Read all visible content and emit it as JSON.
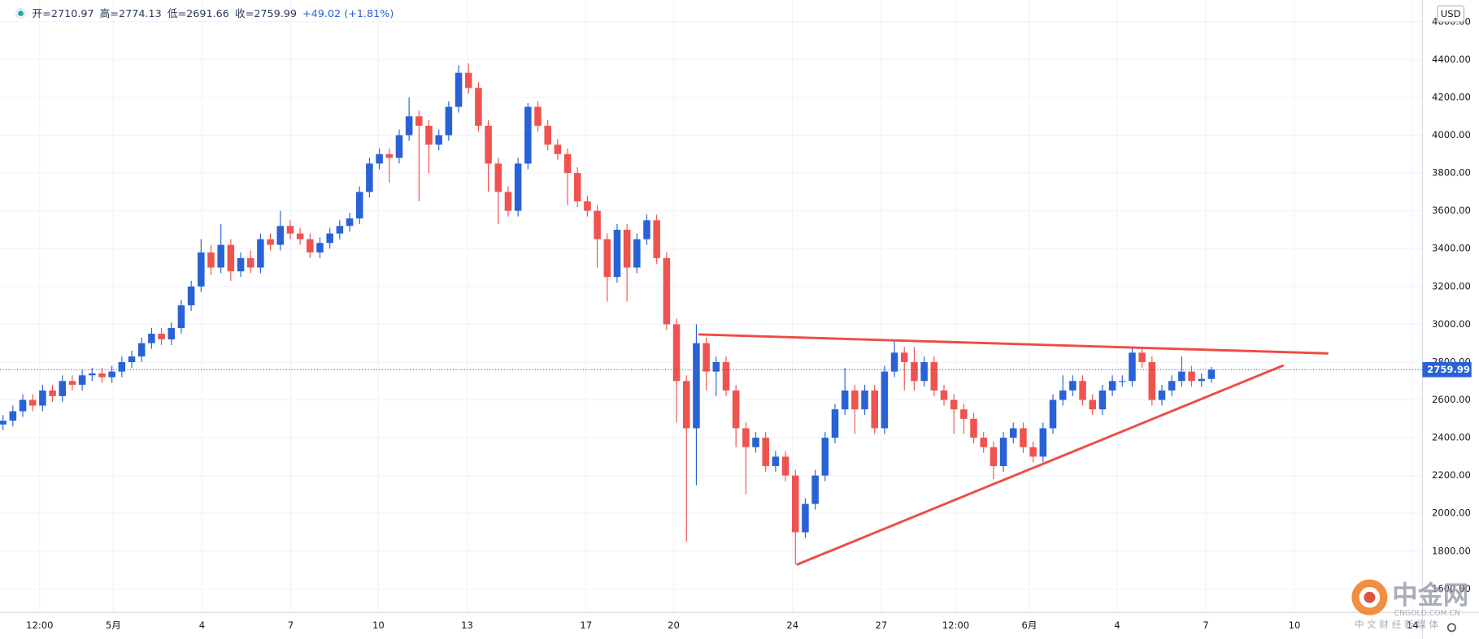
{
  "chart_data": {
    "type": "candlestick",
    "header": [
      "开=2710.97",
      "高=2774.13",
      "低=2691.66",
      "收=2759.99",
      "+49.02 (+1.81%)"
    ],
    "currency": "USD",
    "up_color": "#2962d6",
    "down_color": "#ef5350",
    "xlim": [
      -0.3,
      143.3
    ],
    "xticks": [
      {
        "value": 3.71,
        "label": "12:00"
      },
      {
        "value": 11.14,
        "label": "5月"
      },
      {
        "value": 20.1,
        "label": "4"
      },
      {
        "value": 29.05,
        "label": "7"
      },
      {
        "value": 37.9,
        "label": "10"
      },
      {
        "value": 46.86,
        "label": "13"
      },
      {
        "value": 58.86,
        "label": "17"
      },
      {
        "value": 67.71,
        "label": "20"
      },
      {
        "value": 79.71,
        "label": "24"
      },
      {
        "value": 88.67,
        "label": "27"
      },
      {
        "value": 96.19,
        "label": "12:00"
      },
      {
        "value": 103.62,
        "label": "6月"
      },
      {
        "value": 112.48,
        "label": "4"
      },
      {
        "value": 121.43,
        "label": "7"
      },
      {
        "value": 130.38,
        "label": "10"
      },
      {
        "value": 142.29,
        "label": "14"
      }
    ],
    "ylim": [
      1476,
      4714
    ],
    "yticks": [
      {
        "value": 1600,
        "label": "1600.00"
      },
      {
        "value": 1800,
        "label": "1800.00"
      },
      {
        "value": 2000,
        "label": "2000.00"
      },
      {
        "value": 2200,
        "label": "2200.00"
      },
      {
        "value": 2400,
        "label": "2400.00"
      },
      {
        "value": 2600,
        "label": "2600.00"
      },
      {
        "value": 2800,
        "label": "2800.00"
      },
      {
        "value": 3000,
        "label": "3000.00"
      },
      {
        "value": 3200,
        "label": "3200.00"
      },
      {
        "value": 3400,
        "label": "3400.00"
      },
      {
        "value": 3600,
        "label": "3600.00"
      },
      {
        "value": 3800,
        "label": "3800.00"
      },
      {
        "value": 4000,
        "label": "4000.00"
      },
      {
        "value": 4200,
        "label": "4200.00"
      },
      {
        "value": 4400,
        "label": "4400.00"
      },
      {
        "value": 4600,
        "label": "4600.00"
      }
    ],
    "grid": true,
    "last_price": 2759.99,
    "candles": [
      [
        2470,
        2520,
        2440,
        2490
      ],
      [
        2490,
        2570,
        2460,
        2540
      ],
      [
        2540,
        2630,
        2510,
        2600
      ],
      [
        2600,
        2630,
        2540,
        2570
      ],
      [
        2570,
        2680,
        2540,
        2650
      ],
      [
        2650,
        2680,
        2590,
        2620
      ],
      [
        2620,
        2730,
        2590,
        2700
      ],
      [
        2700,
        2730,
        2650,
        2680
      ],
      [
        2680,
        2760,
        2650,
        2730
      ],
      [
        2730,
        2770,
        2700,
        2740
      ],
      [
        2740,
        2770,
        2690,
        2720
      ],
      [
        2720,
        2780,
        2690,
        2750
      ],
      [
        2750,
        2830,
        2720,
        2800
      ],
      [
        2800,
        2860,
        2770,
        2830
      ],
      [
        2830,
        2930,
        2800,
        2900
      ],
      [
        2900,
        2980,
        2870,
        2950
      ],
      [
        2950,
        2980,
        2890,
        2920
      ],
      [
        2920,
        3010,
        2890,
        2980
      ],
      [
        2980,
        3130,
        2950,
        3100
      ],
      [
        3100,
        3230,
        3070,
        3200
      ],
      [
        3200,
        3450,
        3170,
        3380
      ],
      [
        3380,
        3420,
        3260,
        3300
      ],
      [
        3300,
        3530,
        3270,
        3420
      ],
      [
        3420,
        3450,
        3230,
        3280
      ],
      [
        3280,
        3380,
        3250,
        3350
      ],
      [
        3350,
        3390,
        3270,
        3300
      ],
      [
        3300,
        3480,
        3270,
        3450
      ],
      [
        3450,
        3480,
        3390,
        3420
      ],
      [
        3420,
        3600,
        3390,
        3520
      ],
      [
        3520,
        3550,
        3450,
        3480
      ],
      [
        3480,
        3510,
        3420,
        3450
      ],
      [
        3450,
        3480,
        3350,
        3380
      ],
      [
        3380,
        3460,
        3350,
        3430
      ],
      [
        3430,
        3510,
        3400,
        3480
      ],
      [
        3480,
        3550,
        3450,
        3520
      ],
      [
        3520,
        3590,
        3490,
        3560
      ],
      [
        3560,
        3730,
        3530,
        3700
      ],
      [
        3700,
        3880,
        3670,
        3850
      ],
      [
        3850,
        3930,
        3820,
        3900
      ],
      [
        3900,
        3930,
        3750,
        3880
      ],
      [
        3880,
        4030,
        3850,
        4000
      ],
      [
        4000,
        4200,
        3970,
        4100
      ],
      [
        4100,
        4130,
        3650,
        4050
      ],
      [
        4050,
        4080,
        3800,
        3950
      ],
      [
        3950,
        4030,
        3920,
        4000
      ],
      [
        4000,
        4180,
        3970,
        4150
      ],
      [
        4150,
        4370,
        4120,
        4330
      ],
      [
        4330,
        4380,
        4220,
        4250
      ],
      [
        4250,
        4280,
        4020,
        4050
      ],
      [
        4050,
        4080,
        3700,
        3850
      ],
      [
        3850,
        3880,
        3530,
        3700
      ],
      [
        3700,
        3730,
        3570,
        3600
      ],
      [
        3600,
        3880,
        3570,
        3850
      ],
      [
        3850,
        4170,
        3820,
        4150
      ],
      [
        4150,
        4180,
        4020,
        4050
      ],
      [
        4050,
        4080,
        3920,
        3950
      ],
      [
        3950,
        3980,
        3870,
        3900
      ],
      [
        3900,
        3930,
        3630,
        3800
      ],
      [
        3800,
        3830,
        3620,
        3650
      ],
      [
        3650,
        3680,
        3570,
        3600
      ],
      [
        3600,
        3630,
        3300,
        3450
      ],
      [
        3450,
        3480,
        3120,
        3250
      ],
      [
        3250,
        3530,
        3220,
        3500
      ],
      [
        3500,
        3530,
        3120,
        3300
      ],
      [
        3300,
        3480,
        3270,
        3450
      ],
      [
        3450,
        3580,
        3420,
        3550
      ],
      [
        3550,
        3580,
        3320,
        3350
      ],
      [
        3350,
        3380,
        2970,
        3000
      ],
      [
        3000,
        3030,
        2480,
        2700
      ],
      [
        2700,
        2730,
        1850,
        2450
      ],
      [
        2450,
        3000,
        2150,
        2900
      ],
      [
        2900,
        2930,
        2650,
        2750
      ],
      [
        2750,
        2830,
        2620,
        2800
      ],
      [
        2800,
        2830,
        2620,
        2650
      ],
      [
        2650,
        2680,
        2350,
        2450
      ],
      [
        2450,
        2480,
        2100,
        2350
      ],
      [
        2350,
        2430,
        2320,
        2400
      ],
      [
        2400,
        2430,
        2220,
        2250
      ],
      [
        2250,
        2330,
        2220,
        2300
      ],
      [
        2300,
        2330,
        2170,
        2200
      ],
      [
        2200,
        2230,
        1730,
        1900
      ],
      [
        1900,
        2080,
        1870,
        2050
      ],
      [
        2050,
        2230,
        2020,
        2200
      ],
      [
        2200,
        2430,
        2170,
        2400
      ],
      [
        2400,
        2580,
        2370,
        2550
      ],
      [
        2550,
        2770,
        2520,
        2650
      ],
      [
        2650,
        2680,
        2420,
        2550
      ],
      [
        2550,
        2680,
        2520,
        2650
      ],
      [
        2650,
        2680,
        2420,
        2450
      ],
      [
        2450,
        2780,
        2420,
        2750
      ],
      [
        2750,
        2910,
        2720,
        2850
      ],
      [
        2850,
        2880,
        2650,
        2800
      ],
      [
        2800,
        2880,
        2650,
        2700
      ],
      [
        2700,
        2830,
        2670,
        2800
      ],
      [
        2800,
        2830,
        2620,
        2650
      ],
      [
        2650,
        2680,
        2570,
        2600
      ],
      [
        2600,
        2630,
        2420,
        2550
      ],
      [
        2550,
        2580,
        2420,
        2500
      ],
      [
        2500,
        2530,
        2370,
        2400
      ],
      [
        2400,
        2430,
        2320,
        2350
      ],
      [
        2350,
        2380,
        2180,
        2250
      ],
      [
        2250,
        2430,
        2220,
        2400
      ],
      [
        2400,
        2480,
        2370,
        2450
      ],
      [
        2450,
        2480,
        2320,
        2350
      ],
      [
        2350,
        2380,
        2270,
        2300
      ],
      [
        2300,
        2480,
        2270,
        2450
      ],
      [
        2450,
        2630,
        2420,
        2600
      ],
      [
        2600,
        2730,
        2570,
        2650
      ],
      [
        2650,
        2730,
        2620,
        2700
      ],
      [
        2700,
        2730,
        2570,
        2600
      ],
      [
        2600,
        2630,
        2520,
        2550
      ],
      [
        2550,
        2680,
        2520,
        2650
      ],
      [
        2650,
        2730,
        2620,
        2700
      ],
      [
        2700,
        2730,
        2670,
        2700
      ],
      [
        2700,
        2880,
        2670,
        2850
      ],
      [
        2850,
        2880,
        2770,
        2800
      ],
      [
        2800,
        2830,
        2570,
        2600
      ],
      [
        2600,
        2680,
        2570,
        2650
      ],
      [
        2650,
        2730,
        2620,
        2700
      ],
      [
        2700,
        2830,
        2670,
        2750
      ],
      [
        2750,
        2780,
        2670,
        2700
      ],
      [
        2700,
        2740,
        2670,
        2710.97
      ],
      [
        2710.97,
        2774.13,
        2691.66,
        2759.99
      ]
    ],
    "trendlines": [
      {
        "color": "#ef4b45",
        "points": [
          [
            70.3,
            2946
          ],
          [
            133.7,
            2846
          ]
        ]
      },
      {
        "color": "#ef4b45",
        "points": [
          [
            80.2,
            1730
          ],
          [
            129.2,
            2781
          ]
        ]
      }
    ],
    "watermark": {
      "brand": "中金网",
      "site": "CNGOLD.COM.CN",
      "slogan": "中 文 财 经 新 媒 体"
    }
  }
}
